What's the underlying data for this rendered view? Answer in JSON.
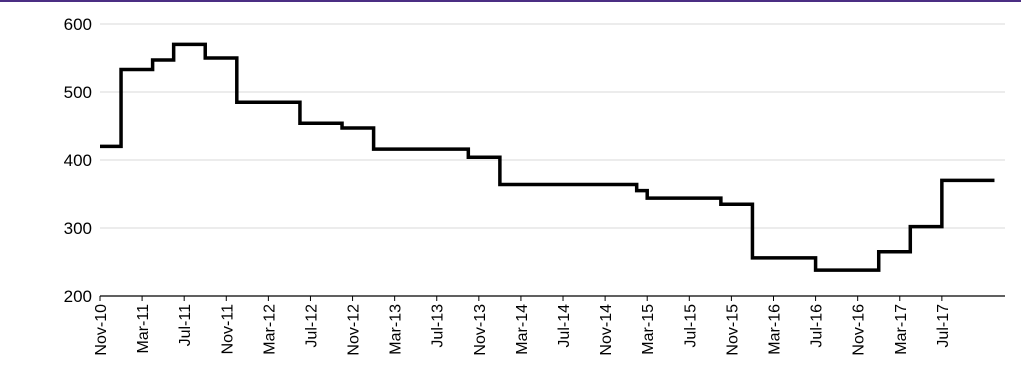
{
  "colors": {
    "accent_rule": "#4b2e83",
    "line": "#000000",
    "grid": "#d9d9d9"
  },
  "chart_data": {
    "type": "line",
    "title": "",
    "xlabel": "",
    "ylabel": "",
    "ylim": [
      200,
      600
    ],
    "yticks": [
      200,
      300,
      400,
      500,
      600
    ],
    "grid": true,
    "legend": "none",
    "x_tick_labels": [
      "Nov-10",
      "Mar-11",
      "Jul-11",
      "Nov-11",
      "Mar-12",
      "Jul-12",
      "Nov-12",
      "Mar-13",
      "Jul-13",
      "Nov-13",
      "Mar-14",
      "Jul-14",
      "Nov-14",
      "Mar-15",
      "Jul-15",
      "Nov-15",
      "Mar-16",
      "Jul-16",
      "Nov-16",
      "Mar-17",
      "Jul-17"
    ],
    "step": "post",
    "x": [
      "Nov-10",
      "Jan-11",
      "Apr-11",
      "Jun-11",
      "Sep-11",
      "Dec-11",
      "Jun-12",
      "Oct-12",
      "Jan-13",
      "Oct-13",
      "Jan-14",
      "Feb-15",
      "Mar-15",
      "Oct-15",
      "Jan-16",
      "Jul-16",
      "Jan-17",
      "Apr-17",
      "Jul-17",
      "Dec-17"
    ],
    "series": [
      {
        "values": [
          420,
          533,
          547,
          570,
          550,
          485,
          454,
          447,
          416,
          404,
          364,
          355,
          344,
          335,
          256,
          238,
          265,
          302,
          370,
          370
        ]
      }
    ]
  }
}
